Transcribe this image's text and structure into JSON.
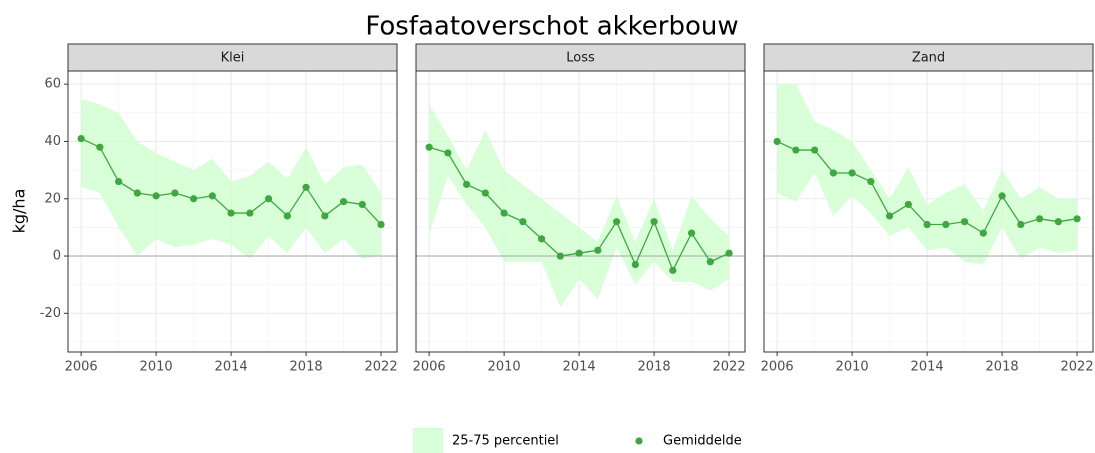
{
  "chart_data": {
    "type": "line",
    "title": "Fosfaatoverschot akkerbouw",
    "ylabel": "kg/ha",
    "x": [
      2006,
      2007,
      2008,
      2009,
      2010,
      2011,
      2012,
      2013,
      2014,
      2015,
      2016,
      2017,
      2018,
      2019,
      2020,
      2021,
      2022
    ],
    "xlim": [
      2005.3,
      2022.85
    ],
    "xticks": [
      2006,
      2010,
      2014,
      2018,
      2022
    ],
    "ylim": [
      -33.5,
      64.6
    ],
    "yticks": [
      -20,
      0,
      20,
      40,
      60
    ],
    "hline": 0,
    "grid": true,
    "band": {
      "name": "25-75 percentiel",
      "color": "#ccffcc"
    },
    "mean": {
      "name": "Gemiddelde",
      "color": "#3fa73f"
    },
    "panels": [
      {
        "name": "Klei",
        "mean": [
          41,
          38,
          26,
          22,
          21,
          22,
          20,
          21,
          15,
          15,
          20,
          14,
          24,
          14,
          19,
          18,
          11
        ],
        "p75": [
          55,
          53,
          50,
          40,
          36,
          33,
          30,
          34,
          26,
          28,
          33,
          27,
          38,
          25,
          31,
          32,
          22
        ],
        "p25": [
          24,
          22,
          10,
          0,
          6,
          3,
          4,
          6,
          4,
          -1,
          7,
          1,
          10,
          1,
          6,
          -1,
          0
        ]
      },
      {
        "name": "Loss",
        "mean": [
          38,
          36,
          25,
          22,
          15,
          12,
          6,
          0,
          1,
          2,
          12,
          -3,
          12,
          -5,
          8,
          -2,
          1
        ],
        "p75": [
          53,
          42,
          30,
          44,
          30,
          25,
          20,
          15,
          10,
          5,
          21,
          5,
          20,
          2,
          21,
          13,
          7
        ],
        "p25": [
          7,
          28,
          18,
          10,
          -2,
          -2,
          -2,
          -18,
          -8,
          -15,
          3,
          -10,
          -2,
          -9,
          -9,
          -12,
          -8
        ]
      },
      {
        "name": "Zand",
        "mean": [
          40,
          37,
          37,
          29,
          29,
          26,
          14,
          18,
          11,
          11,
          12,
          8,
          21,
          11,
          13,
          12,
          13
        ],
        "p75": [
          60,
          60,
          47,
          44,
          40,
          30,
          20,
          31,
          18,
          22,
          25,
          16,
          30,
          20,
          24,
          20,
          20
        ],
        "p25": [
          22,
          19,
          29,
          14,
          21,
          15,
          7,
          10,
          2,
          3,
          -2,
          -3,
          10,
          -1,
          3,
          1,
          2
        ]
      }
    ]
  }
}
